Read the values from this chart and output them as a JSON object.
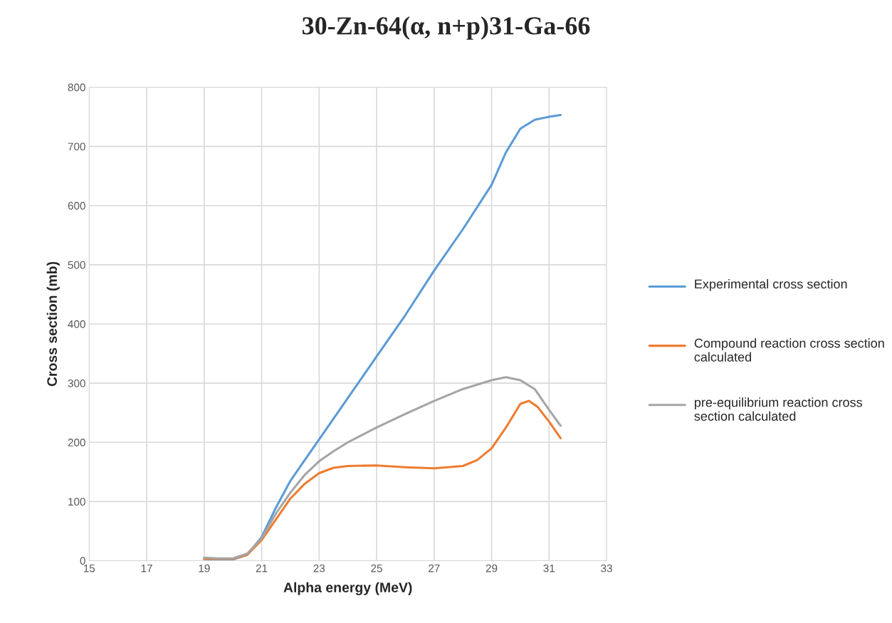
{
  "chart_data": {
    "type": "line",
    "title": "30-Zn-64(α, n+p)31-Ga-66",
    "xlabel": "Alpha energy (MeV)",
    "ylabel": "Cross section (mb)",
    "xlim": [
      15,
      33
    ],
    "xticks": [
      15,
      17,
      19,
      21,
      23,
      25,
      27,
      29,
      31,
      33
    ],
    "ylim": [
      0,
      800
    ],
    "yticks": [
      0,
      100,
      200,
      300,
      400,
      500,
      600,
      700,
      800
    ],
    "grid": true,
    "legend": "right",
    "marker": "none",
    "line_style": "solid",
    "series": [
      {
        "name": "Experimental cross section",
        "color": "#5b9bd5",
        "x": [
          19,
          19.5,
          20,
          20.5,
          21,
          21.5,
          22,
          22.5,
          23,
          24,
          25,
          26,
          27,
          28,
          29,
          29.5,
          30,
          30.5,
          31,
          31.4
        ],
        "values": [
          3,
          1,
          2,
          10,
          40,
          90,
          135,
          170,
          205,
          275,
          345,
          415,
          490,
          560,
          635,
          690,
          730,
          745,
          750,
          753
        ]
      },
      {
        "name": "Compound reaction cross section calculated",
        "color": "#ed7d31",
        "x": [
          19,
          19.5,
          20,
          20.5,
          21,
          21.5,
          22,
          22.5,
          23,
          23.5,
          24,
          25,
          26,
          27,
          28,
          28.5,
          29,
          29.5,
          30,
          30.3,
          30.6,
          31,
          31.4
        ],
        "values": [
          3,
          3,
          3,
          10,
          35,
          70,
          105,
          130,
          148,
          157,
          160,
          161,
          158,
          156,
          160,
          170,
          190,
          225,
          265,
          270,
          260,
          235,
          207
        ]
      },
      {
        "name": "pre-equilibrium reaction cross section calculated",
        "color": "#a5a5a5",
        "x": [
          19,
          19.5,
          20,
          20.5,
          21,
          21.5,
          22,
          22.5,
          23,
          23.5,
          24,
          25,
          26,
          27,
          28,
          29,
          29.5,
          30,
          30.5,
          31,
          31.4
        ],
        "values": [
          5,
          4,
          4,
          12,
          38,
          80,
          115,
          145,
          168,
          185,
          200,
          225,
          248,
          270,
          290,
          305,
          310,
          305,
          290,
          255,
          228
        ]
      }
    ]
  }
}
